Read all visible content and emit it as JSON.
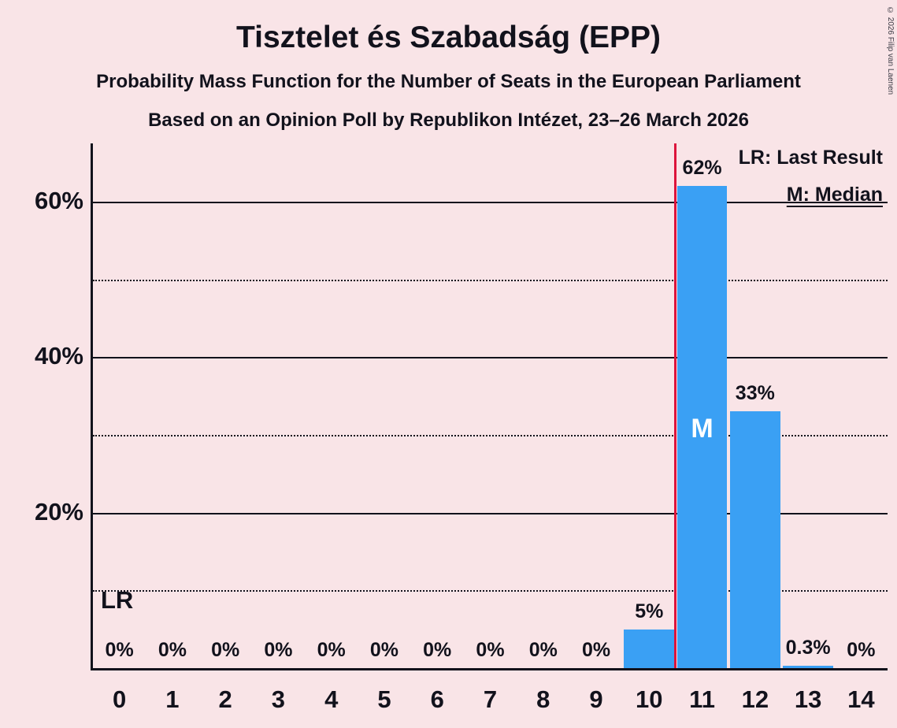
{
  "header": {
    "title": "Tisztelet és Szabadság (EPP)",
    "subtitle1": "Probability Mass Function for the Number of Seats in the European Parliament",
    "subtitle2": "Based on an Opinion Poll by Republikon Intézet, 23–26 March 2026"
  },
  "legend": {
    "last_result": "LR: Last Result",
    "median": "M: Median"
  },
  "annotations": {
    "lr_floor_label": "LR",
    "median_label": "M"
  },
  "copyright": "© 2026 Filip van Laenen",
  "colors": {
    "background": "#f9e4e7",
    "bar": "#3aa0f4",
    "lr_line": "#dc143c",
    "text": "#12121c",
    "median_text": "#ffffff"
  },
  "chart_data": {
    "type": "bar",
    "title": "Tisztelet és Szabadság (EPP)",
    "xlabel": "Number of seats in the European Parliament",
    "ylabel": "Probability",
    "categories": [
      "0",
      "1",
      "2",
      "3",
      "4",
      "5",
      "6",
      "7",
      "8",
      "9",
      "10",
      "11",
      "12",
      "13",
      "14"
    ],
    "values": [
      0,
      0,
      0,
      0,
      0,
      0,
      0,
      0,
      0,
      0,
      5,
      62,
      33,
      0.3,
      0
    ],
    "bar_labels": [
      "0%",
      "0%",
      "0%",
      "0%",
      "0%",
      "0%",
      "0%",
      "0%",
      "0%",
      "0%",
      "5%",
      "62%",
      "33%",
      "0.3%",
      "0%"
    ],
    "y_ticks": [
      {
        "value": 20,
        "label": "20%"
      },
      {
        "value": 40,
        "label": "40%"
      },
      {
        "value": 60,
        "label": "60%"
      }
    ],
    "dotted_gridlines": [
      10,
      30,
      50
    ],
    "ylim": [
      0,
      67.5
    ],
    "median_category": "11",
    "last_result_boundary": 10.5,
    "grid": true,
    "legend_position": "top-right"
  }
}
